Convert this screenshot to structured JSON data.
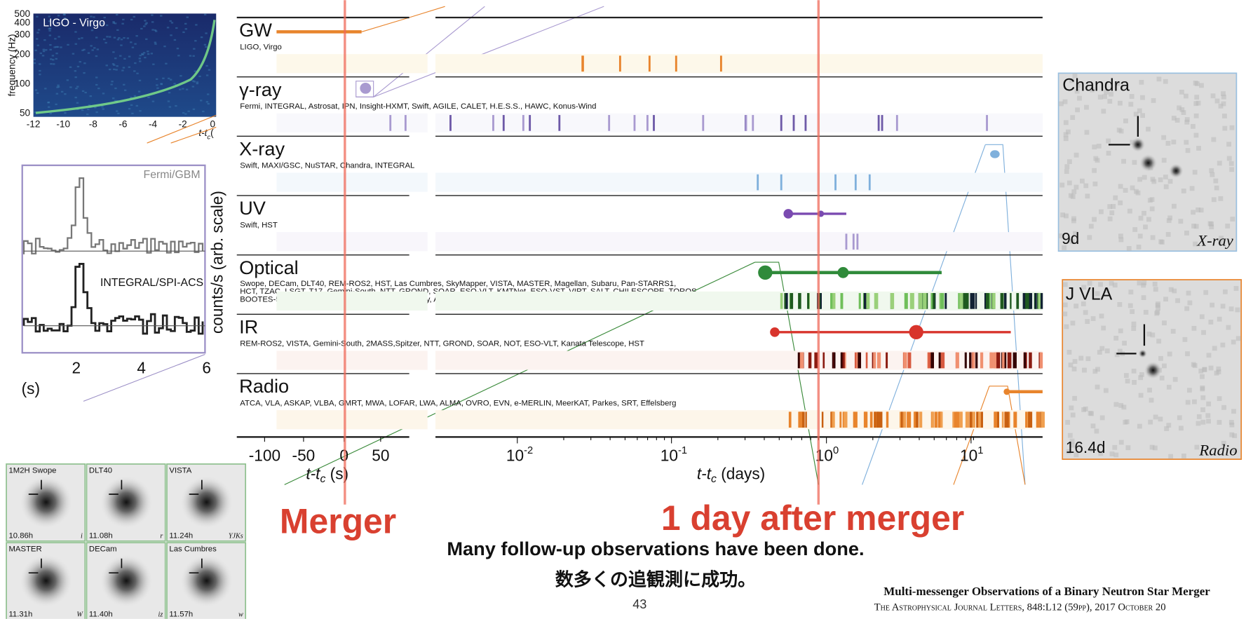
{
  "gw_inset": {
    "label": "LIGO - Virgo",
    "y_axis_label": "frequency (Hz)",
    "yticks": [
      "500",
      "400",
      "300",
      "200",
      "100",
      "50"
    ],
    "xticks": [
      "-12",
      "-10",
      "-8",
      "-6",
      "-4",
      "-2",
      "0"
    ],
    "x_axis_label": {
      "t": "t-t",
      "sub": "c",
      "unit": "("
    }
  },
  "grb_inset": {
    "upper_label": "Fermi/GBM",
    "lower_label": "INTEGRAL/SPI-ACS",
    "y_axis_label": "counts/s (arb. scale)",
    "xticks": [
      "2",
      "4",
      "6"
    ],
    "unit": "(s)"
  },
  "bands": [
    {
      "name": "GW",
      "instruments": "LIGO, Virgo"
    },
    {
      "name": "γ-ray",
      "instruments": "Fermi, INTEGRAL, Astrosat, IPN, Insight-HXMT, Swift, AGILE, CALET, H.E.S.S., HAWC, Konus-Wind"
    },
    {
      "name": "X-ray",
      "instruments": "Swift, MAXI/GSC, NuSTAR, Chandra, INTEGRAL"
    },
    {
      "name": "UV",
      "instruments": "Swift, HST"
    },
    {
      "name": "Optical",
      "instruments": [
        "Swope, DECam, DLT40, REM-ROS2, HST, Las Cumbres, SkyMapper, VISTA, MASTER, Magellan, Subaru, Pan-STARRS1,",
        "HCT, TZAC, LSGT, T17, Gemini-South, NTT, GROND, SOAR, ESO-VLT, KMTNet, ESO-VST, VIRT, SALT, CHILESCOPE, TOROS,",
        "BOOTES-5, Zadko, iTelescope.Net, AAT, Pi of the Sky, AST3-2, ATLAS, Danish Tel, DFN, T80S, EABA"
      ]
    },
    {
      "name": "IR",
      "instruments": "REM-ROS2, VISTA, Gemini-South, 2MASS,Spitzer, NTT, GROND, SOAR, NOT, ESO-VLT, Kanata Telescope, HST"
    },
    {
      "name": "Radio",
      "instruments": "ATCA, VLA, ASKAP, VLBA, GMRT, MWA, LOFAR, LWA, ALMA, OVRO, EVN, e-MERLIN, MeerKAT, Parkes, SRT, Effelsberg"
    }
  ],
  "x_axis": {
    "linear_ticks": [
      "-100",
      "-50",
      "0",
      "50"
    ],
    "linear_label": {
      "t": "t-t",
      "sub": "c",
      "unit": " (s)"
    },
    "log_ticks": [
      {
        "base": "10",
        "exp": "-2"
      },
      {
        "base": "10",
        "exp": "-1"
      },
      {
        "base": "10",
        "exp": "0"
      },
      {
        "base": "10",
        "exp": "1"
      }
    ],
    "log_label": {
      "t": "t-t",
      "sub": "c",
      "unit": " (days)"
    }
  },
  "chandra": {
    "title": "Chandra",
    "time": "9d",
    "band": "X-ray"
  },
  "vla": {
    "title": "J VLA",
    "time": "16.4d",
    "band": "Radio"
  },
  "thumbnails": [
    {
      "name": "1M2H Swope",
      "time": "10.86h",
      "filter": "i"
    },
    {
      "name": "DLT40",
      "time": "11.08h",
      "filter": "r"
    },
    {
      "name": "VISTA",
      "time": "11.24h",
      "filter": "YJKs"
    },
    {
      "name": "MASTER",
      "time": "11.31h",
      "filter": "W"
    },
    {
      "name": "DECam",
      "time": "11.40h",
      "filter": "iz"
    },
    {
      "name": "Las Cumbres",
      "time": "11.57h",
      "filter": "w"
    }
  ],
  "annotations": {
    "merger": "Merger",
    "one_day": "1 day after merger",
    "caption_en": "Many follow-up observations have been done.",
    "caption_ja": "数多くの追観測に成功。",
    "page": "43"
  },
  "reference": {
    "title": "Multi-messenger Observations of a Binary Neutron Star Merger",
    "citation": "The Astrophysical Journal Letters, 848:L12 (59pp), 2017 October 20"
  }
}
